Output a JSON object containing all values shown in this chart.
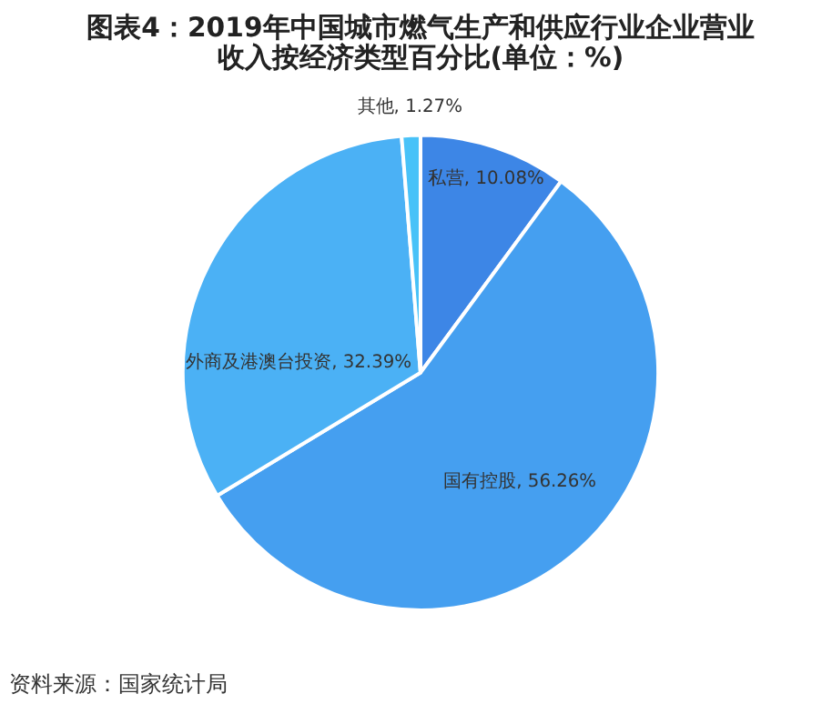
{
  "chart_data": {
    "type": "pie",
    "title": "图表4：2019年中国城市燃气生产和供应行业企业营业收入按经济类型百分比(单位：%)",
    "categories": [
      "私营",
      "国有控股",
      "外商及港澳台投资",
      "其他"
    ],
    "data_labels": true,
    "values": [
      10.08,
      56.26,
      32.39,
      1.27
    ],
    "colors": [
      "#3d86e6",
      "#459ff0",
      "#4bb1f5",
      "#48c2f8"
    ],
    "value_labels": [
      "10.08%",
      "56.26%",
      "32.39%",
      "1.27%"
    ],
    "annotations": [
      "资料来源：国家统计局"
    ]
  }
}
